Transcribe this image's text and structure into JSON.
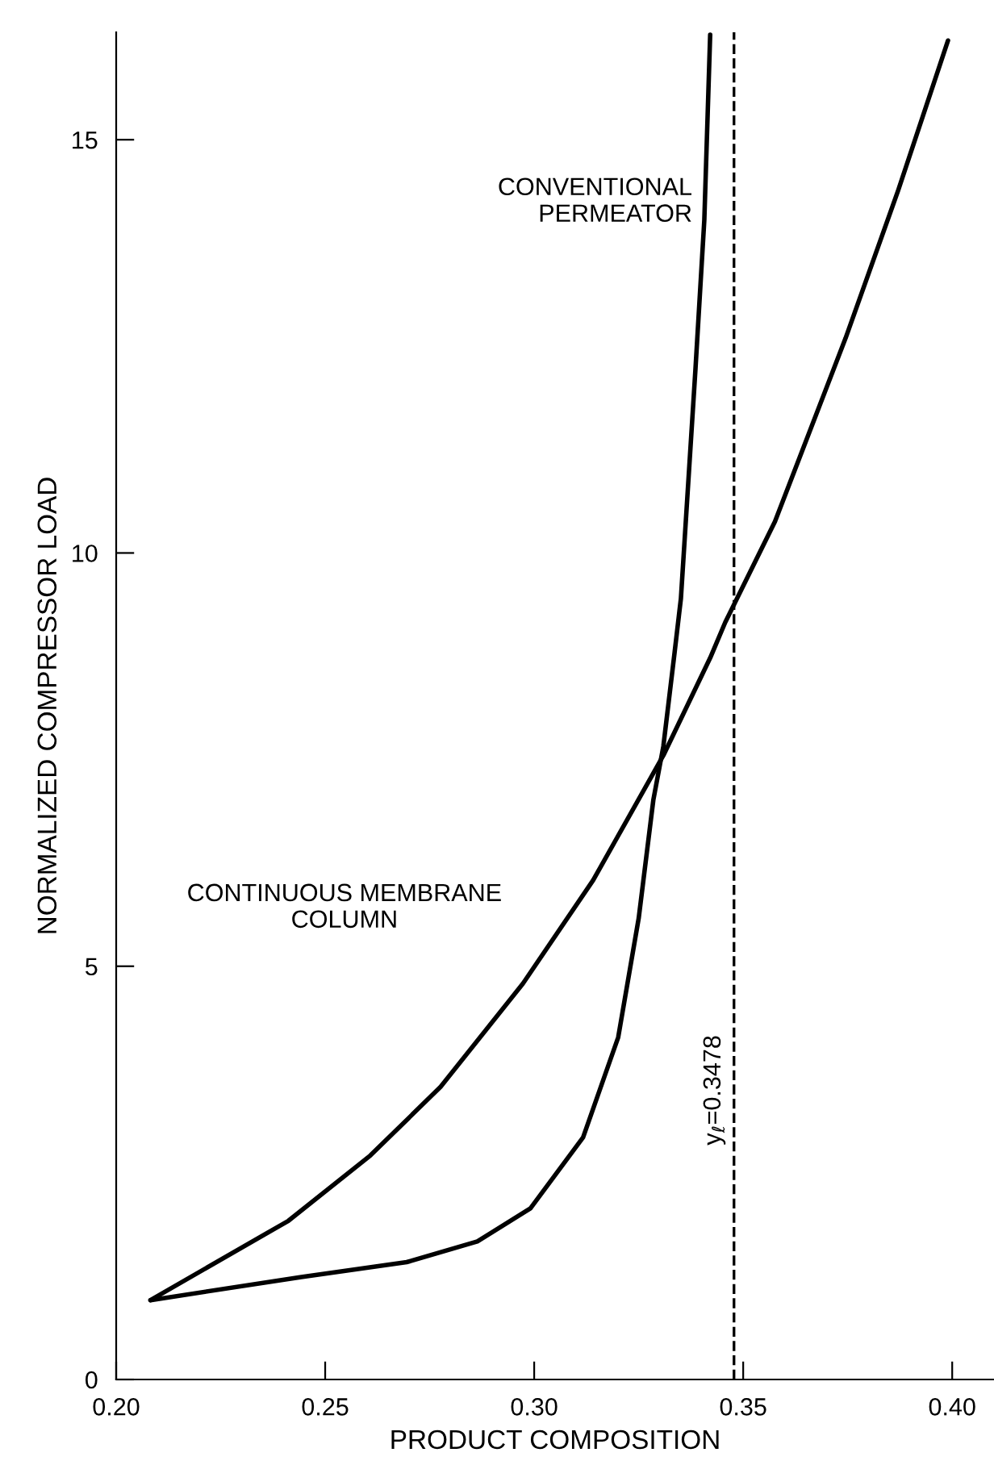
{
  "chart_data": {
    "type": "line",
    "xlabel": "PRODUCT COMPOSITION",
    "ylabel": "NORMALIZED COMPRESSOR LOAD",
    "series": [
      {
        "name": "CONVENTIONAL\nPERMEATOR",
        "color": "#000000",
        "x": [
          0.2082,
          0.2443,
          0.2695,
          0.2864,
          0.2991,
          0.3117,
          0.3201,
          0.325,
          0.3285,
          0.3309,
          0.3336,
          0.3351,
          0.3386,
          0.3407,
          0.3421
        ],
        "values": [
          0.96,
          1.24,
          1.42,
          1.67,
          2.07,
          2.93,
          4.14,
          5.58,
          7.01,
          7.66,
          8.8,
          9.45,
          12.24,
          14.03,
          16.27
        ]
      },
      {
        "name": "CONTINUOUS MEMBRANE\nCOLUMN",
        "color": "#000000",
        "x": [
          0.2082,
          0.2412,
          0.2608,
          0.2776,
          0.2973,
          0.3141,
          0.3309,
          0.3421,
          0.3457,
          0.3576,
          0.3745,
          0.3871,
          0.399
        ],
        "values": [
          0.96,
          1.92,
          2.71,
          3.54,
          4.79,
          6.04,
          7.55,
          8.73,
          9.16,
          10.38,
          12.6,
          14.39,
          16.2
        ]
      }
    ],
    "ref_lines": [
      {
        "axis": "x",
        "value": 0.3478,
        "label": "y$_{ℓ}$=0.3478",
        "line_style": "dashed",
        "color": "#000000"
      }
    ],
    "xlim": [
      0.2,
      0.41
    ],
    "xticks": [
      {
        "value": 0.2,
        "label": "0.20"
      },
      {
        "value": 0.25,
        "label": "0.25"
      },
      {
        "value": 0.3,
        "label": "0.30"
      },
      {
        "value": 0.35,
        "label": "0.35"
      },
      {
        "value": 0.4,
        "label": "0.40"
      }
    ],
    "ylim": [
      0,
      16.3
    ],
    "yticks": [
      0,
      5,
      10,
      15
    ],
    "grid": false,
    "legend": false,
    "marker": "none",
    "line_style": "solid"
  }
}
